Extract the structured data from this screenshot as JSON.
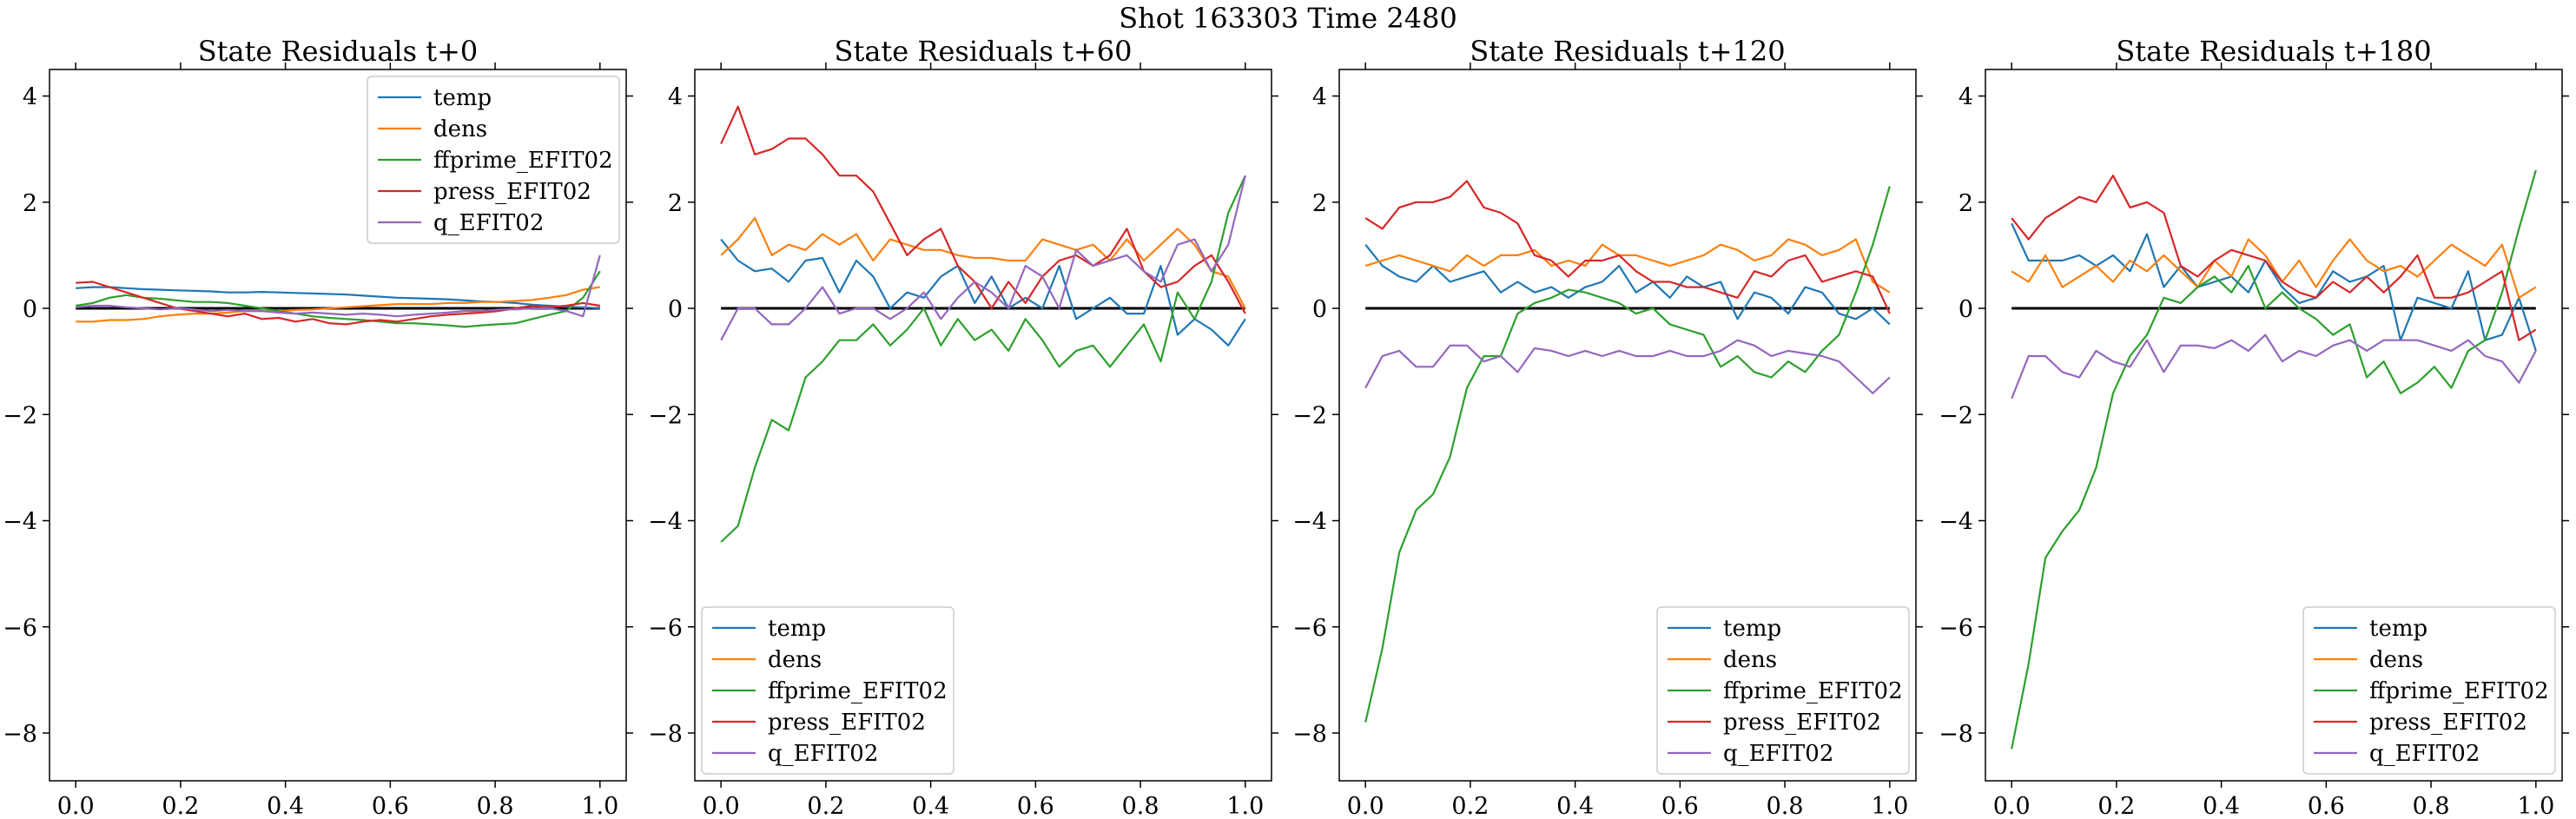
{
  "suptitle": "Shot 163303   Time 2480",
  "colors": {
    "temp": "#1f77b4",
    "dens": "#ff7f0e",
    "ffprime_EFIT02": "#2ca02c",
    "press_EFIT02": "#d62728",
    "q_EFIT02": "#9467bd"
  },
  "chart_data": [
    {
      "type": "line",
      "title": "State Residuals t+0",
      "xlim": [
        -0.05,
        1.05
      ],
      "ylim": [
        -8.9,
        4.5
      ],
      "xticks": [
        0.0,
        0.2,
        0.4,
        0.6,
        0.8,
        1.0
      ],
      "yticks": [
        -8,
        -6,
        -4,
        -2,
        0,
        2,
        4
      ],
      "xtick_labels": [
        "0.0",
        "0.2",
        "0.4",
        "0.6",
        "0.8",
        "1.0"
      ],
      "ytick_labels": [
        "−8",
        "−6",
        "−4",
        "−2",
        "0",
        "2",
        "4"
      ],
      "legend_position": "upper right",
      "x_step": 0.0333,
      "zero_line": true,
      "series": [
        {
          "name": "temp",
          "values": [
            0.38,
            0.4,
            0.4,
            0.38,
            0.36,
            0.35,
            0.34,
            0.33,
            0.32,
            0.3,
            0.3,
            0.31,
            0.3,
            0.29,
            0.28,
            0.27,
            0.26,
            0.24,
            0.22,
            0.2,
            0.19,
            0.18,
            0.17,
            0.15,
            0.13,
            0.12,
            0.1,
            0.07,
            0.05,
            0.03,
            0.02,
            0.0
          ]
        },
        {
          "name": "dens",
          "values": [
            -0.25,
            -0.25,
            -0.22,
            -0.22,
            -0.2,
            -0.15,
            -0.12,
            -0.1,
            -0.1,
            -0.08,
            -0.05,
            -0.05,
            -0.05,
            -0.03,
            -0.02,
            0.0,
            0.02,
            0.04,
            0.06,
            0.08,
            0.08,
            0.08,
            0.1,
            0.1,
            0.12,
            0.12,
            0.14,
            0.16,
            0.2,
            0.25,
            0.35,
            0.4
          ]
        },
        {
          "name": "ffprime_EFIT02",
          "values": [
            0.05,
            0.1,
            0.2,
            0.25,
            0.2,
            0.18,
            0.15,
            0.12,
            0.12,
            0.1,
            0.05,
            0.0,
            -0.05,
            -0.1,
            -0.15,
            -0.18,
            -0.2,
            -0.22,
            -0.25,
            -0.28,
            -0.28,
            -0.3,
            -0.32,
            -0.35,
            -0.32,
            -0.3,
            -0.28,
            -0.2,
            -0.12,
            -0.05,
            0.2,
            0.7
          ]
        },
        {
          "name": "press_EFIT02",
          "values": [
            0.48,
            0.5,
            0.4,
            0.3,
            0.2,
            0.1,
            0.0,
            -0.05,
            -0.1,
            -0.15,
            -0.1,
            -0.2,
            -0.18,
            -0.25,
            -0.2,
            -0.28,
            -0.3,
            -0.25,
            -0.22,
            -0.25,
            -0.2,
            -0.15,
            -0.12,
            -0.1,
            -0.08,
            -0.05,
            0.0,
            0.05,
            0.02,
            0.05,
            0.1,
            0.05
          ]
        },
        {
          "name": "q_EFIT02",
          "values": [
            0.02,
            0.05,
            0.05,
            0.02,
            0.0,
            -0.02,
            0.0,
            -0.02,
            -0.05,
            -0.03,
            -0.05,
            -0.05,
            -0.08,
            -0.1,
            -0.08,
            -0.1,
            -0.12,
            -0.1,
            -0.12,
            -0.15,
            -0.12,
            -0.1,
            -0.08,
            -0.05,
            -0.05,
            -0.02,
            -0.02,
            0.0,
            0.0,
            -0.05,
            -0.15,
            1.0
          ]
        }
      ]
    },
    {
      "type": "line",
      "title": "State Residuals t+60",
      "xlim": [
        -0.05,
        1.05
      ],
      "ylim": [
        -8.9,
        4.5
      ],
      "xticks": [
        0.0,
        0.2,
        0.4,
        0.6,
        0.8,
        1.0
      ],
      "yticks": [
        -8,
        -6,
        -4,
        -2,
        0,
        2,
        4
      ],
      "xtick_labels": [
        "0.0",
        "0.2",
        "0.4",
        "0.6",
        "0.8",
        "1.0"
      ],
      "ytick_labels": [
        "−8",
        "−6",
        "−4",
        "−2",
        "0",
        "2",
        "4"
      ],
      "legend_position": "lower left",
      "x_step": 0.0333,
      "zero_line": true,
      "series": [
        {
          "name": "temp",
          "values": [
            1.3,
            0.9,
            0.7,
            0.75,
            0.5,
            0.9,
            0.95,
            0.3,
            0.9,
            0.6,
            0.0,
            0.3,
            0.2,
            0.6,
            0.8,
            0.1,
            0.6,
            0.0,
            0.2,
            0.0,
            0.8,
            -0.2,
            0.0,
            0.2,
            -0.1,
            -0.1,
            0.8,
            -0.5,
            -0.2,
            -0.4,
            -0.7,
            -0.2
          ]
        },
        {
          "name": "dens",
          "values": [
            1.0,
            1.3,
            1.7,
            1.0,
            1.2,
            1.1,
            1.4,
            1.2,
            1.4,
            0.9,
            1.3,
            1.2,
            1.1,
            1.1,
            1.0,
            0.95,
            0.95,
            0.9,
            0.9,
            1.3,
            1.2,
            1.1,
            1.2,
            0.9,
            1.3,
            0.9,
            1.2,
            1.5,
            1.2,
            0.7,
            0.6,
            0.0
          ]
        },
        {
          "name": "ffprime_EFIT02",
          "values": [
            -4.4,
            -4.1,
            -3.0,
            -2.1,
            -2.3,
            -1.3,
            -1.0,
            -0.6,
            -0.6,
            -0.3,
            -0.7,
            -0.4,
            0.0,
            -0.7,
            -0.2,
            -0.6,
            -0.4,
            -0.8,
            -0.2,
            -0.6,
            -1.1,
            -0.8,
            -0.7,
            -1.1,
            -0.7,
            -0.3,
            -1.0,
            0.3,
            -0.2,
            0.5,
            1.8,
            2.5
          ]
        },
        {
          "name": "press_EFIT02",
          "values": [
            3.1,
            3.8,
            2.9,
            3.0,
            3.2,
            3.2,
            2.9,
            2.5,
            2.5,
            2.2,
            1.6,
            1.0,
            1.3,
            1.5,
            0.8,
            0.5,
            0.0,
            0.5,
            0.1,
            0.6,
            0.9,
            1.0,
            0.8,
            1.0,
            1.5,
            0.7,
            0.4,
            0.5,
            0.8,
            1.0,
            0.5,
            -0.1
          ]
        },
        {
          "name": "q_EFIT02",
          "values": [
            -0.6,
            0.0,
            0.0,
            -0.3,
            -0.3,
            0.0,
            0.4,
            -0.1,
            0.0,
            0.0,
            -0.2,
            0.0,
            0.3,
            -0.2,
            0.2,
            0.5,
            0.3,
            0.0,
            0.8,
            0.6,
            0.0,
            1.1,
            0.8,
            0.9,
            1.0,
            0.7,
            0.5,
            1.2,
            1.3,
            0.7,
            1.2,
            2.5
          ]
        }
      ]
    },
    {
      "type": "line",
      "title": "State Residuals t+120",
      "xlim": [
        -0.05,
        1.05
      ],
      "ylim": [
        -8.9,
        4.5
      ],
      "xticks": [
        0.0,
        0.2,
        0.4,
        0.6,
        0.8,
        1.0
      ],
      "yticks": [
        -8,
        -6,
        -4,
        -2,
        0,
        2,
        4
      ],
      "xtick_labels": [
        "0.0",
        "0.2",
        "0.4",
        "0.6",
        "0.8",
        "1.0"
      ],
      "ytick_labels": [
        "−8",
        "−6",
        "−4",
        "−2",
        "0",
        "2",
        "4"
      ],
      "legend_position": "lower right",
      "x_step": 0.0333,
      "zero_line": true,
      "series": [
        {
          "name": "temp",
          "values": [
            1.2,
            0.8,
            0.6,
            0.5,
            0.8,
            0.5,
            0.6,
            0.7,
            0.3,
            0.5,
            0.3,
            0.4,
            0.2,
            0.4,
            0.5,
            0.8,
            0.3,
            0.5,
            0.2,
            0.6,
            0.4,
            0.5,
            -0.2,
            0.3,
            0.2,
            -0.1,
            0.4,
            0.3,
            -0.1,
            -0.2,
            0.0,
            -0.3
          ]
        },
        {
          "name": "dens",
          "values": [
            0.8,
            0.9,
            1.0,
            0.9,
            0.8,
            0.7,
            1.0,
            0.8,
            1.0,
            1.0,
            1.1,
            0.8,
            0.9,
            0.8,
            1.2,
            1.0,
            1.0,
            0.9,
            0.8,
            0.9,
            1.0,
            1.2,
            1.1,
            0.9,
            1.0,
            1.3,
            1.2,
            1.0,
            1.1,
            1.3,
            0.5,
            0.3
          ]
        },
        {
          "name": "ffprime_EFIT02",
          "values": [
            -7.8,
            -6.4,
            -4.6,
            -3.8,
            -3.5,
            -2.8,
            -1.5,
            -0.9,
            -0.9,
            -0.1,
            0.1,
            0.2,
            0.35,
            0.3,
            0.2,
            0.1,
            -0.1,
            0.0,
            -0.3,
            -0.4,
            -0.5,
            -1.1,
            -0.9,
            -1.2,
            -1.3,
            -1.0,
            -1.2,
            -0.8,
            -0.5,
            0.3,
            1.2,
            2.3
          ]
        },
        {
          "name": "press_EFIT02",
          "values": [
            1.7,
            1.5,
            1.9,
            2.0,
            2.0,
            2.1,
            2.4,
            1.9,
            1.8,
            1.6,
            1.0,
            0.9,
            0.6,
            0.9,
            0.9,
            1.0,
            0.7,
            0.5,
            0.5,
            0.4,
            0.4,
            0.3,
            0.2,
            0.7,
            0.6,
            0.9,
            1.0,
            0.5,
            0.6,
            0.7,
            0.6,
            -0.1
          ]
        },
        {
          "name": "q_EFIT02",
          "values": [
            -1.5,
            -0.9,
            -0.8,
            -1.1,
            -1.1,
            -0.7,
            -0.7,
            -1.0,
            -0.9,
            -1.2,
            -0.75,
            -0.8,
            -0.9,
            -0.8,
            -0.9,
            -0.8,
            -0.9,
            -0.9,
            -0.8,
            -0.9,
            -0.9,
            -0.8,
            -0.6,
            -0.7,
            -0.9,
            -0.8,
            -0.85,
            -0.9,
            -1.0,
            -1.3,
            -1.6,
            -1.3
          ]
        }
      ]
    },
    {
      "type": "line",
      "title": "State Residuals t+180",
      "xlim": [
        -0.05,
        1.05
      ],
      "ylim": [
        -8.9,
        4.5
      ],
      "xticks": [
        0.0,
        0.2,
        0.4,
        0.6,
        0.8,
        1.0
      ],
      "yticks": [
        -8,
        -6,
        -4,
        -2,
        0,
        2,
        4
      ],
      "xtick_labels": [
        "0.0",
        "0.2",
        "0.4",
        "0.6",
        "0.8",
        "1.0"
      ],
      "ytick_labels": [
        "−8",
        "−6",
        "−4",
        "−2",
        "0",
        "2",
        "4"
      ],
      "legend_position": "lower right",
      "x_step": 0.0333,
      "zero_line": true,
      "series": [
        {
          "name": "temp",
          "values": [
            1.6,
            0.9,
            0.9,
            0.9,
            1.0,
            0.8,
            1.0,
            0.7,
            1.4,
            0.4,
            0.8,
            0.4,
            0.5,
            0.6,
            0.3,
            0.9,
            0.4,
            0.1,
            0.2,
            0.7,
            0.5,
            0.6,
            0.8,
            -0.6,
            0.2,
            0.1,
            0.0,
            0.7,
            -0.6,
            -0.5,
            0.2,
            -0.8
          ]
        },
        {
          "name": "dens",
          "values": [
            0.7,
            0.5,
            1.0,
            0.4,
            0.6,
            0.8,
            0.5,
            0.9,
            0.7,
            1.0,
            0.7,
            0.4,
            0.9,
            0.6,
            1.3,
            1.0,
            0.5,
            0.9,
            0.4,
            0.9,
            1.3,
            0.9,
            0.7,
            0.8,
            0.6,
            0.9,
            1.2,
            1.0,
            0.8,
            1.2,
            0.2,
            0.4
          ]
        },
        {
          "name": "ffprime_EFIT02",
          "values": [
            -8.3,
            -6.7,
            -4.7,
            -4.2,
            -3.8,
            -3.0,
            -1.6,
            -0.9,
            -0.5,
            0.2,
            0.1,
            0.4,
            0.6,
            0.3,
            0.8,
            0.0,
            0.3,
            0.0,
            -0.2,
            -0.5,
            -0.3,
            -1.3,
            -1.0,
            -1.6,
            -1.4,
            -1.1,
            -1.5,
            -0.8,
            -0.6,
            0.3,
            1.5,
            2.6
          ]
        },
        {
          "name": "press_EFIT02",
          "values": [
            1.7,
            1.3,
            1.7,
            1.9,
            2.1,
            2.0,
            2.5,
            1.9,
            2.0,
            1.8,
            0.8,
            0.6,
            0.9,
            1.1,
            1.0,
            0.9,
            0.5,
            0.3,
            0.2,
            0.5,
            0.3,
            0.6,
            0.3,
            0.6,
            1.0,
            0.2,
            0.2,
            0.3,
            0.5,
            0.7,
            -0.6,
            -0.4
          ]
        },
        {
          "name": "q_EFIT02",
          "values": [
            -1.7,
            -0.9,
            -0.9,
            -1.2,
            -1.3,
            -0.8,
            -1.0,
            -1.1,
            -0.6,
            -1.2,
            -0.7,
            -0.7,
            -0.75,
            -0.6,
            -0.8,
            -0.5,
            -1.0,
            -0.8,
            -0.9,
            -0.7,
            -0.6,
            -0.8,
            -0.6,
            -0.6,
            -0.6,
            -0.7,
            -0.8,
            -0.6,
            -0.9,
            -1.0,
            -1.4,
            -0.8
          ]
        }
      ]
    }
  ]
}
